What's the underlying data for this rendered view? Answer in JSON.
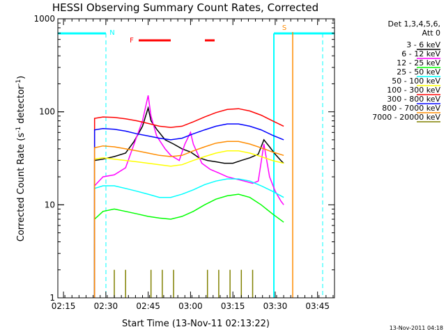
{
  "chart_data": {
    "type": "line",
    "title": "HESSI Observing Summary Count Rates, Corrected",
    "xlabel": "Start Time (13-Nov-11 02:13:22)",
    "ylabel": "Corrected Count Rate (s",
    "ylabel_sup1": "-1",
    "ylabel_mid": " detector",
    "ylabel_sup2": "-1",
    "ylabel_end": ")",
    "y_scale": "log",
    "ylim": [
      1,
      1000
    ],
    "xlim_minutes": [
      0,
      98
    ],
    "y_ticks": [
      {
        "value": 1,
        "label": "1"
      },
      {
        "value": 10,
        "label": "10"
      },
      {
        "value": 100,
        "label": "100"
      },
      {
        "value": 1000,
        "label": "1000"
      }
    ],
    "x_ticks": [
      {
        "minutes": 2,
        "label": "02:15"
      },
      {
        "minutes": 17,
        "label": "02:30"
      },
      {
        "minutes": 32,
        "label": "02:45"
      },
      {
        "minutes": 47,
        "label": "03:00"
      },
      {
        "minutes": 62,
        "label": "03:15"
      },
      {
        "minutes": 77,
        "label": "03:30"
      },
      {
        "minutes": 92,
        "label": "03:45"
      }
    ],
    "legend_header": [
      "Det 1,3,4,5,6,",
      "Att 0"
    ],
    "legend_position": "right",
    "series": [
      {
        "name": "3 - 6 keV",
        "color": "#000000",
        "x": [
          13,
          16,
          20,
          24,
          27,
          30,
          32,
          33,
          35,
          38,
          41,
          44,
          47,
          50,
          53,
          56,
          59,
          62,
          65,
          68,
          71,
          73,
          75,
          77,
          79,
          80
        ],
        "y": [
          30,
          31,
          33,
          36,
          48,
          70,
          110,
          80,
          65,
          50,
          45,
          40,
          37,
          32,
          30,
          29,
          28,
          28,
          30,
          32,
          35,
          50,
          42,
          35,
          30,
          28
        ]
      },
      {
        "name": "6 - 12 keV",
        "color": "#ff00ff",
        "x": [
          13,
          16,
          20,
          24,
          27,
          30,
          32,
          33,
          35,
          38,
          40,
          43,
          45,
          47,
          48,
          51,
          54,
          57,
          60,
          63,
          66,
          69,
          71,
          73,
          75,
          77,
          79,
          80
        ],
        "y": [
          16,
          20,
          21,
          25,
          45,
          80,
          150,
          90,
          55,
          40,
          34,
          30,
          45,
          60,
          45,
          28,
          24,
          22,
          20,
          19,
          18,
          17,
          18,
          45,
          20,
          14,
          11,
          10
        ]
      },
      {
        "name": "12 - 25 keV",
        "color": "#00ff00",
        "x": [
          13,
          16,
          20,
          24,
          28,
          32,
          36,
          40,
          44,
          48,
          52,
          56,
          60,
          64,
          68,
          72,
          76,
          80
        ],
        "y": [
          7,
          8.5,
          9,
          8.5,
          8,
          7.5,
          7.2,
          7,
          7.5,
          8.5,
          10,
          11.5,
          12.5,
          13,
          12,
          10,
          8,
          6.5
        ]
      },
      {
        "name": "25 - 50 keV",
        "color": "#00ffff",
        "x": [
          13,
          16,
          20,
          24,
          28,
          32,
          36,
          40,
          44,
          48,
          52,
          56,
          60,
          64,
          68,
          72,
          76,
          80
        ],
        "y": [
          15,
          16,
          16,
          15,
          14,
          13,
          12,
          12,
          13,
          14.5,
          16.5,
          18,
          19,
          19,
          18,
          16,
          14,
          12
        ]
      },
      {
        "name": "50 - 100 keV",
        "color": "#ffff00",
        "x": [
          13,
          16,
          20,
          24,
          28,
          32,
          36,
          40,
          44,
          48,
          52,
          56,
          60,
          64,
          68,
          72,
          76,
          80
        ],
        "y": [
          31,
          32,
          31,
          30,
          29,
          28,
          27,
          26,
          27,
          30,
          33,
          36,
          38,
          38,
          36,
          33,
          30,
          28
        ]
      },
      {
        "name": "100 - 300 keV",
        "color": "#ff0000",
        "x": [
          13,
          16,
          20,
          24,
          28,
          32,
          36,
          40,
          44,
          48,
          52,
          56,
          60,
          64,
          68,
          72,
          76,
          80
        ],
        "y": [
          85,
          88,
          87,
          84,
          80,
          75,
          70,
          68,
          70,
          78,
          88,
          98,
          106,
          108,
          102,
          92,
          80,
          70
        ]
      },
      {
        "name": "300 - 800 keV",
        "color": "#0000ff",
        "x": [
          13,
          16,
          20,
          24,
          28,
          32,
          36,
          40,
          44,
          48,
          52,
          56,
          60,
          64,
          68,
          72,
          76,
          80
        ],
        "y": [
          64,
          66,
          65,
          62,
          58,
          55,
          52,
          50,
          52,
          58,
          64,
          70,
          74,
          74,
          70,
          64,
          56,
          50
        ]
      },
      {
        "name": "800 - 7000 keV",
        "color": "#ff8c00",
        "x": [
          13,
          16,
          20,
          24,
          28,
          32,
          36,
          40,
          44,
          48,
          52,
          56,
          60,
          64,
          68,
          72,
          76,
          80
        ],
        "y": [
          41,
          43,
          42,
          40,
          38,
          36,
          34,
          33,
          34,
          38,
          42,
          46,
          48,
          48,
          45,
          41,
          37,
          34
        ]
      },
      {
        "name": "7000 - 20000 keV",
        "color": "#808000",
        "x": [
          13,
          18,
          20,
          22,
          24,
          26,
          31,
          33,
          35,
          37,
          39,
          41,
          43,
          50,
          53,
          55,
          57,
          59,
          61,
          63,
          65,
          67,
          69,
          71
        ],
        "y": [
          1,
          1,
          2,
          1,
          2,
          1,
          1,
          2,
          1,
          2,
          1,
          2,
          1,
          1,
          2,
          1,
          2,
          1,
          2,
          1,
          2,
          1,
          2,
          1
        ]
      }
    ],
    "annotations": [
      {
        "text": "N",
        "color": "#00ffff"
      },
      {
        "text": "F",
        "color": "#ff0000"
      },
      {
        "text": "S",
        "color": "#ff8c00"
      }
    ]
  },
  "timestamp": "13-Nov-2011 04:18"
}
